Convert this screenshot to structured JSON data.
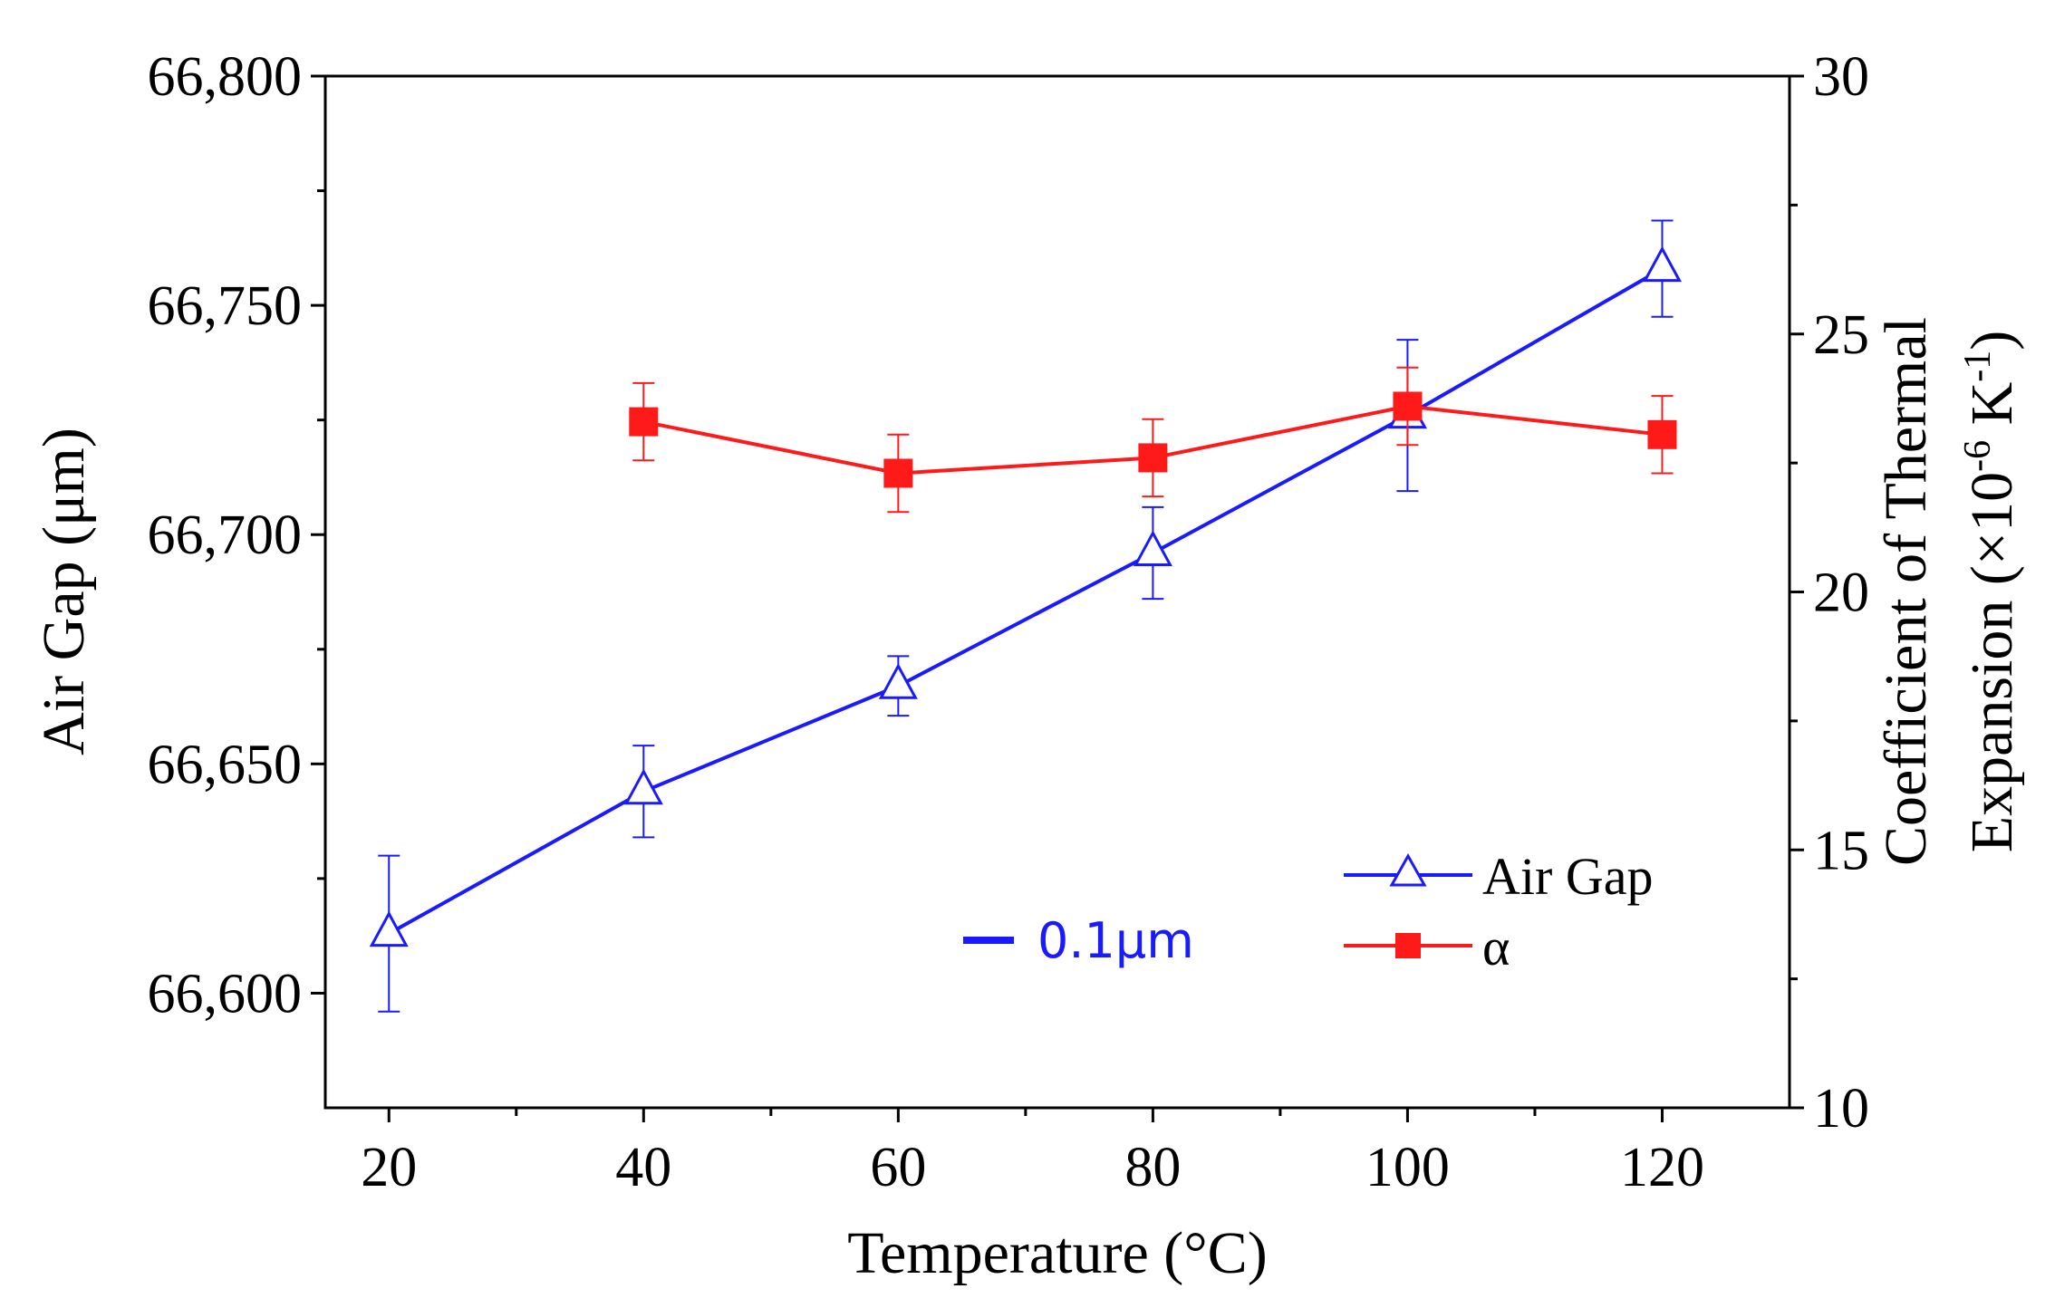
{
  "chart_data": {
    "type": "line",
    "title": "",
    "xlabel": "Temperature (°C)",
    "ylabel_left": "Air Gap (μm)",
    "ylabel_right_line1": "Coefficient of Thermal",
    "ylabel_right_line2_prefix": "Expansion (×10",
    "ylabel_right_sup1": "-6",
    "ylabel_right_mid": " K",
    "ylabel_right_sup2": "-1",
    "ylabel_right_suffix": ")",
    "xlim": [
      15,
      130
    ],
    "ylim_left": [
      66575,
      66800
    ],
    "ylim_right": [
      10,
      30
    ],
    "x_ticks": [
      20,
      40,
      60,
      80,
      100,
      120
    ],
    "x_tick_labels": [
      "20",
      "40",
      "60",
      "80",
      "100",
      "120"
    ],
    "y_left_ticks": [
      66600,
      66650,
      66700,
      66750,
      66800
    ],
    "y_left_tick_labels": [
      "66,600",
      "66,650",
      "66,700",
      "66,750",
      "66,800"
    ],
    "y_right_ticks": [
      10,
      15,
      20,
      25,
      30
    ],
    "y_right_tick_labels": [
      "10",
      "15",
      "20",
      "25",
      "30"
    ],
    "series": [
      {
        "name": "Air Gap",
        "axis": "left",
        "color": "#1a1aff",
        "marker": "open-triangle",
        "x": [
          20,
          40,
          60,
          80,
          100,
          120
        ],
        "y": [
          66613,
          66644,
          66667,
          66696,
          66726,
          66758
        ],
        "err": [
          17,
          10,
          6.5,
          10,
          16.5,
          10.5
        ]
      },
      {
        "name": "α",
        "axis": "right",
        "color": "#ff1a1a",
        "marker": "filled-square",
        "x": [
          40,
          60,
          80,
          100,
          120
        ],
        "y": [
          23.3,
          22.3,
          22.6,
          23.6,
          23.05
        ],
        "err": [
          0.75,
          0.75,
          0.75,
          0.75,
          0.75
        ]
      }
    ],
    "legend": {
      "position": "bottom-right",
      "entries": [
        "Air Gap",
        "α"
      ]
    },
    "annotation": {
      "text": "0.1μm",
      "color": "#1a1aff"
    }
  }
}
